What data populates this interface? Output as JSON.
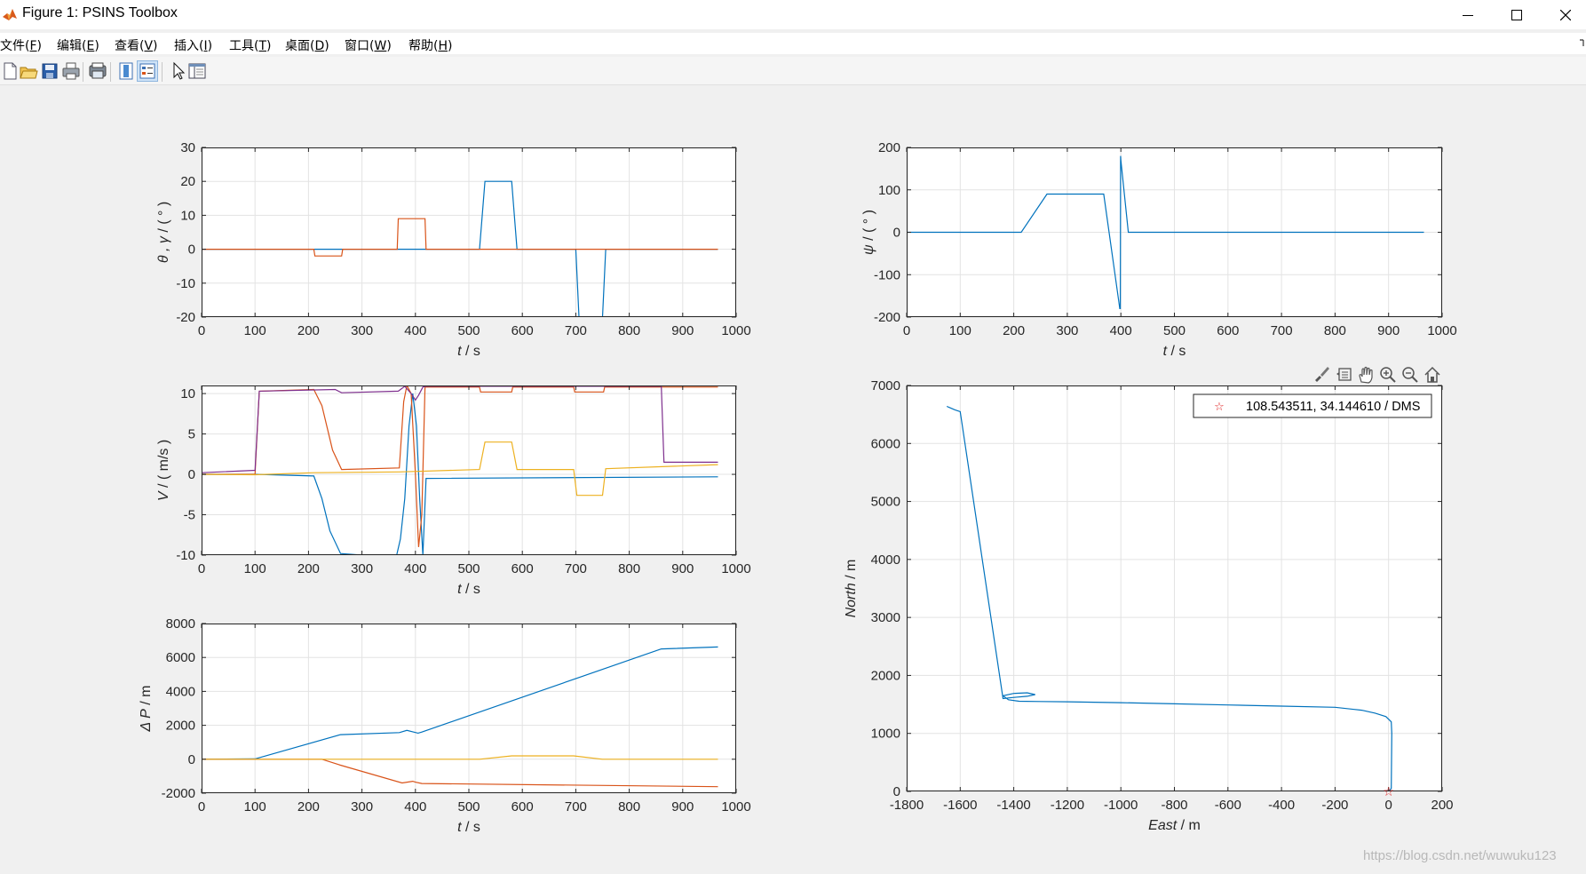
{
  "window": {
    "title": "Figure 1: PSINS Toolbox",
    "minimize_icon": "minimize-icon",
    "maximize_icon": "maximize-icon",
    "close_icon": "close-icon"
  },
  "menu": [
    {
      "text": "文件(",
      "key": "F",
      "end": ")"
    },
    {
      "text": "编辑(",
      "key": "E",
      "end": ")"
    },
    {
      "text": "查看(",
      "key": "V",
      "end": ")"
    },
    {
      "text": "插入(",
      "key": "I",
      "end": ")"
    },
    {
      "text": "工具(",
      "key": "T",
      "end": ")"
    },
    {
      "text": "桌面(",
      "key": "D",
      "end": ")"
    },
    {
      "text": "窗口(",
      "key": "W",
      "end": ")"
    },
    {
      "text": "帮助(",
      "key": "H",
      "end": ")"
    }
  ],
  "toolbar": [
    "new-figure-icon",
    "open-file-icon",
    "save-icon",
    "print-icon",
    "print-preview-icon",
    "colorbar-icon",
    "legend-icon",
    "edit-plot-cursor-icon",
    "property-inspector-icon"
  ],
  "axes_toolbar": [
    "brush-icon",
    "data-tips-icon",
    "pan-hand-icon",
    "zoom-in-icon",
    "zoom-out-icon",
    "home-icon"
  ],
  "watermark": "https://blog.csdn.net/wuwuku123",
  "colors": {
    "c1": "#0072BD",
    "c2": "#D95319",
    "c3": "#EDB120",
    "c4": "#7E2F8E",
    "marker": "#e02020"
  },
  "chart_data": [
    {
      "id": "attitude-pitch-roll",
      "type": "line",
      "xlabel_parts": [
        {
          "t": "t",
          "i": true
        },
        {
          "t": "  /  s",
          "i": false
        }
      ],
      "ylabel_parts": [
        {
          "t": "θ , γ",
          "i": true
        },
        {
          "t": " / ( ° )",
          "i": false
        }
      ],
      "xlim": [
        0,
        1000
      ],
      "ylim": [
        -20,
        30
      ],
      "xticks": [
        0,
        100,
        200,
        300,
        400,
        500,
        600,
        700,
        800,
        900,
        1000
      ],
      "yticks": [
        -20,
        -10,
        0,
        10,
        20,
        30
      ],
      "grid": true,
      "series": [
        {
          "color": "#0072BD",
          "x": [
            0,
            200,
            520,
            530,
            580,
            590,
            700,
            706,
            750,
            756,
            966
          ],
          "y": [
            0,
            0,
            0,
            20,
            20,
            0,
            0,
            -20,
            -20,
            0,
            0
          ]
        },
        {
          "color": "#D95319",
          "x": [
            0,
            210,
            212,
            262,
            264,
            366,
            368,
            418,
            420,
            966
          ],
          "y": [
            0,
            0,
            -2,
            -2,
            0,
            0,
            9,
            9,
            0,
            0
          ]
        }
      ]
    },
    {
      "id": "attitude-yaw",
      "type": "line",
      "xlabel_parts": [
        {
          "t": "t",
          "i": true
        },
        {
          "t": "  /  s",
          "i": false
        }
      ],
      "ylabel_parts": [
        {
          "t": "ψ",
          "i": true
        },
        {
          "t": " / ( ° )",
          "i": false
        }
      ],
      "xlim": [
        0,
        1000
      ],
      "ylim": [
        -200,
        200
      ],
      "xticks": [
        0,
        100,
        200,
        300,
        400,
        500,
        600,
        700,
        800,
        900,
        1000
      ],
      "yticks": [
        -200,
        -100,
        0,
        100,
        200
      ],
      "grid": true,
      "series": [
        {
          "color": "#0072BD",
          "x": [
            0,
            214,
            262,
            368,
            398,
            399,
            399.5,
            400,
            414,
            966
          ],
          "y": [
            0,
            0,
            90,
            90,
            -180,
            -180,
            180,
            170,
            0,
            0
          ]
        }
      ]
    },
    {
      "id": "velocity",
      "type": "line",
      "xlabel_parts": [
        {
          "t": "t",
          "i": true
        },
        {
          "t": "  /  s",
          "i": false
        }
      ],
      "ylabel_parts": [
        {
          "t": "V",
          "i": true
        },
        {
          "t": " / ( m/s )",
          "i": false
        }
      ],
      "xlim": [
        0,
        1000
      ],
      "ylim": [
        -10,
        11
      ],
      "xticks": [
        0,
        100,
        200,
        300,
        400,
        500,
        600,
        700,
        800,
        900,
        1000
      ],
      "yticks": [
        -10,
        -5,
        0,
        5,
        10
      ],
      "grid": true,
      "series": [
        {
          "color": "#0072BD",
          "x": [
            0,
            100,
            210,
            225,
            240,
            260,
            300,
            365,
            372,
            380,
            388,
            395,
            402,
            408,
            414,
            420,
            966
          ],
          "y": [
            0,
            0,
            -0.2,
            -3,
            -7,
            -9.8,
            -10,
            -10,
            -8,
            -3,
            6,
            10,
            6,
            -3,
            -10,
            -0.5,
            -0.3
          ]
        },
        {
          "color": "#D95319",
          "x": [
            0,
            100,
            108,
            210,
            225,
            245,
            262,
            370,
            378,
            384,
            392,
            400,
            406,
            412,
            418,
            520,
            522,
            580,
            582,
            696,
            698,
            752,
            754,
            966
          ],
          "y": [
            0,
            0,
            10.3,
            10.5,
            8.5,
            3,
            0.6,
            0.8,
            9,
            11,
            10,
            0,
            -9,
            -5,
            10.8,
            10.8,
            10.2,
            10.2,
            10.8,
            10.8,
            10.2,
            10.2,
            10.8,
            10.8
          ]
        },
        {
          "color": "#EDB120",
          "x": [
            0,
            100,
            210,
            370,
            520,
            530,
            580,
            590,
            696,
            702,
            750,
            756,
            966
          ],
          "y": [
            0,
            -0.05,
            0.2,
            0.3,
            0.6,
            4,
            4,
            0.6,
            0.6,
            -2.6,
            -2.6,
            0.7,
            1.2
          ]
        },
        {
          "color": "#7E2F8E",
          "x": [
            0,
            100,
            108,
            250,
            262,
            368,
            380,
            392,
            400,
            406,
            414,
            420,
            860,
            865,
            966
          ],
          "y": [
            0.2,
            0.5,
            10.3,
            10.5,
            10.1,
            10.3,
            10.9,
            10,
            9.2,
            9.8,
            10.8,
            10.9,
            10.9,
            1.5,
            1.5
          ]
        }
      ]
    },
    {
      "id": "position-error",
      "type": "line",
      "xlabel_parts": [
        {
          "t": "t",
          "i": true
        },
        {
          "t": "  /  s",
          "i": false
        }
      ],
      "ylabel_parts": [
        {
          "t": "Δ P",
          "i": true
        },
        {
          "t": " / m",
          "i": false
        }
      ],
      "xlim": [
        0,
        1000
      ],
      "ylim": [
        -2000,
        8000
      ],
      "xticks": [
        0,
        100,
        200,
        300,
        400,
        500,
        600,
        700,
        800,
        900,
        1000
      ],
      "yticks": [
        -2000,
        0,
        2000,
        4000,
        6000,
        8000
      ],
      "grid": true,
      "series": [
        {
          "color": "#0072BD",
          "x": [
            0,
            100,
            260,
            370,
            384,
            395,
            405,
            412,
            860,
            966
          ],
          "y": [
            0,
            20,
            1450,
            1570,
            1700,
            1620,
            1540,
            1600,
            6500,
            6620
          ]
        },
        {
          "color": "#D95319",
          "x": [
            0,
            225,
            260,
            375,
            395,
            400,
            412,
            966
          ],
          "y": [
            0,
            0,
            -350,
            -1400,
            -1300,
            -1350,
            -1430,
            -1620
          ]
        },
        {
          "color": "#EDB120",
          "x": [
            0,
            520,
            580,
            696,
            750,
            966
          ],
          "y": [
            0,
            0,
            200,
            200,
            0,
            0
          ]
        }
      ]
    },
    {
      "id": "trajectory",
      "type": "line",
      "xlabel_parts": [
        {
          "t": "East",
          "i": true
        },
        {
          "t": " / m",
          "i": false
        }
      ],
      "ylabel_parts": [
        {
          "t": "North",
          "i": true
        },
        {
          "t": " / m",
          "i": false
        }
      ],
      "xlim": [
        -1800,
        200
      ],
      "ylim": [
        0,
        7000
      ],
      "xticks": [
        -1800,
        -1600,
        -1400,
        -1200,
        -1000,
        -800,
        -600,
        -400,
        -200,
        0,
        200
      ],
      "yticks": [
        0,
        1000,
        2000,
        3000,
        4000,
        5000,
        6000,
        7000
      ],
      "grid": true,
      "legend": {
        "text": "108.543511, 34.144610 / DMS",
        "placement": "top-right"
      },
      "marker": {
        "x": 0,
        "y": 0,
        "symbol": "☆"
      },
      "series": [
        {
          "color": "#0072BD",
          "x": [
            0,
            10,
            12,
            10,
            -10,
            -50,
            -100,
            -200,
            -400,
            -600,
            -800,
            -1000,
            -1200,
            -1300,
            -1380,
            -1420,
            -1440,
            -1400,
            -1350,
            -1320,
            -1350,
            -1400,
            -1440,
            -1600,
            -1620,
            -1640,
            -1650
          ],
          "y": [
            0,
            50,
            1000,
            1200,
            1290,
            1350,
            1400,
            1450,
            1470,
            1490,
            1510,
            1530,
            1545,
            1550,
            1555,
            1580,
            1650,
            1690,
            1700,
            1670,
            1640,
            1620,
            1600,
            6550,
            6580,
            6620,
            6640
          ]
        }
      ]
    }
  ]
}
